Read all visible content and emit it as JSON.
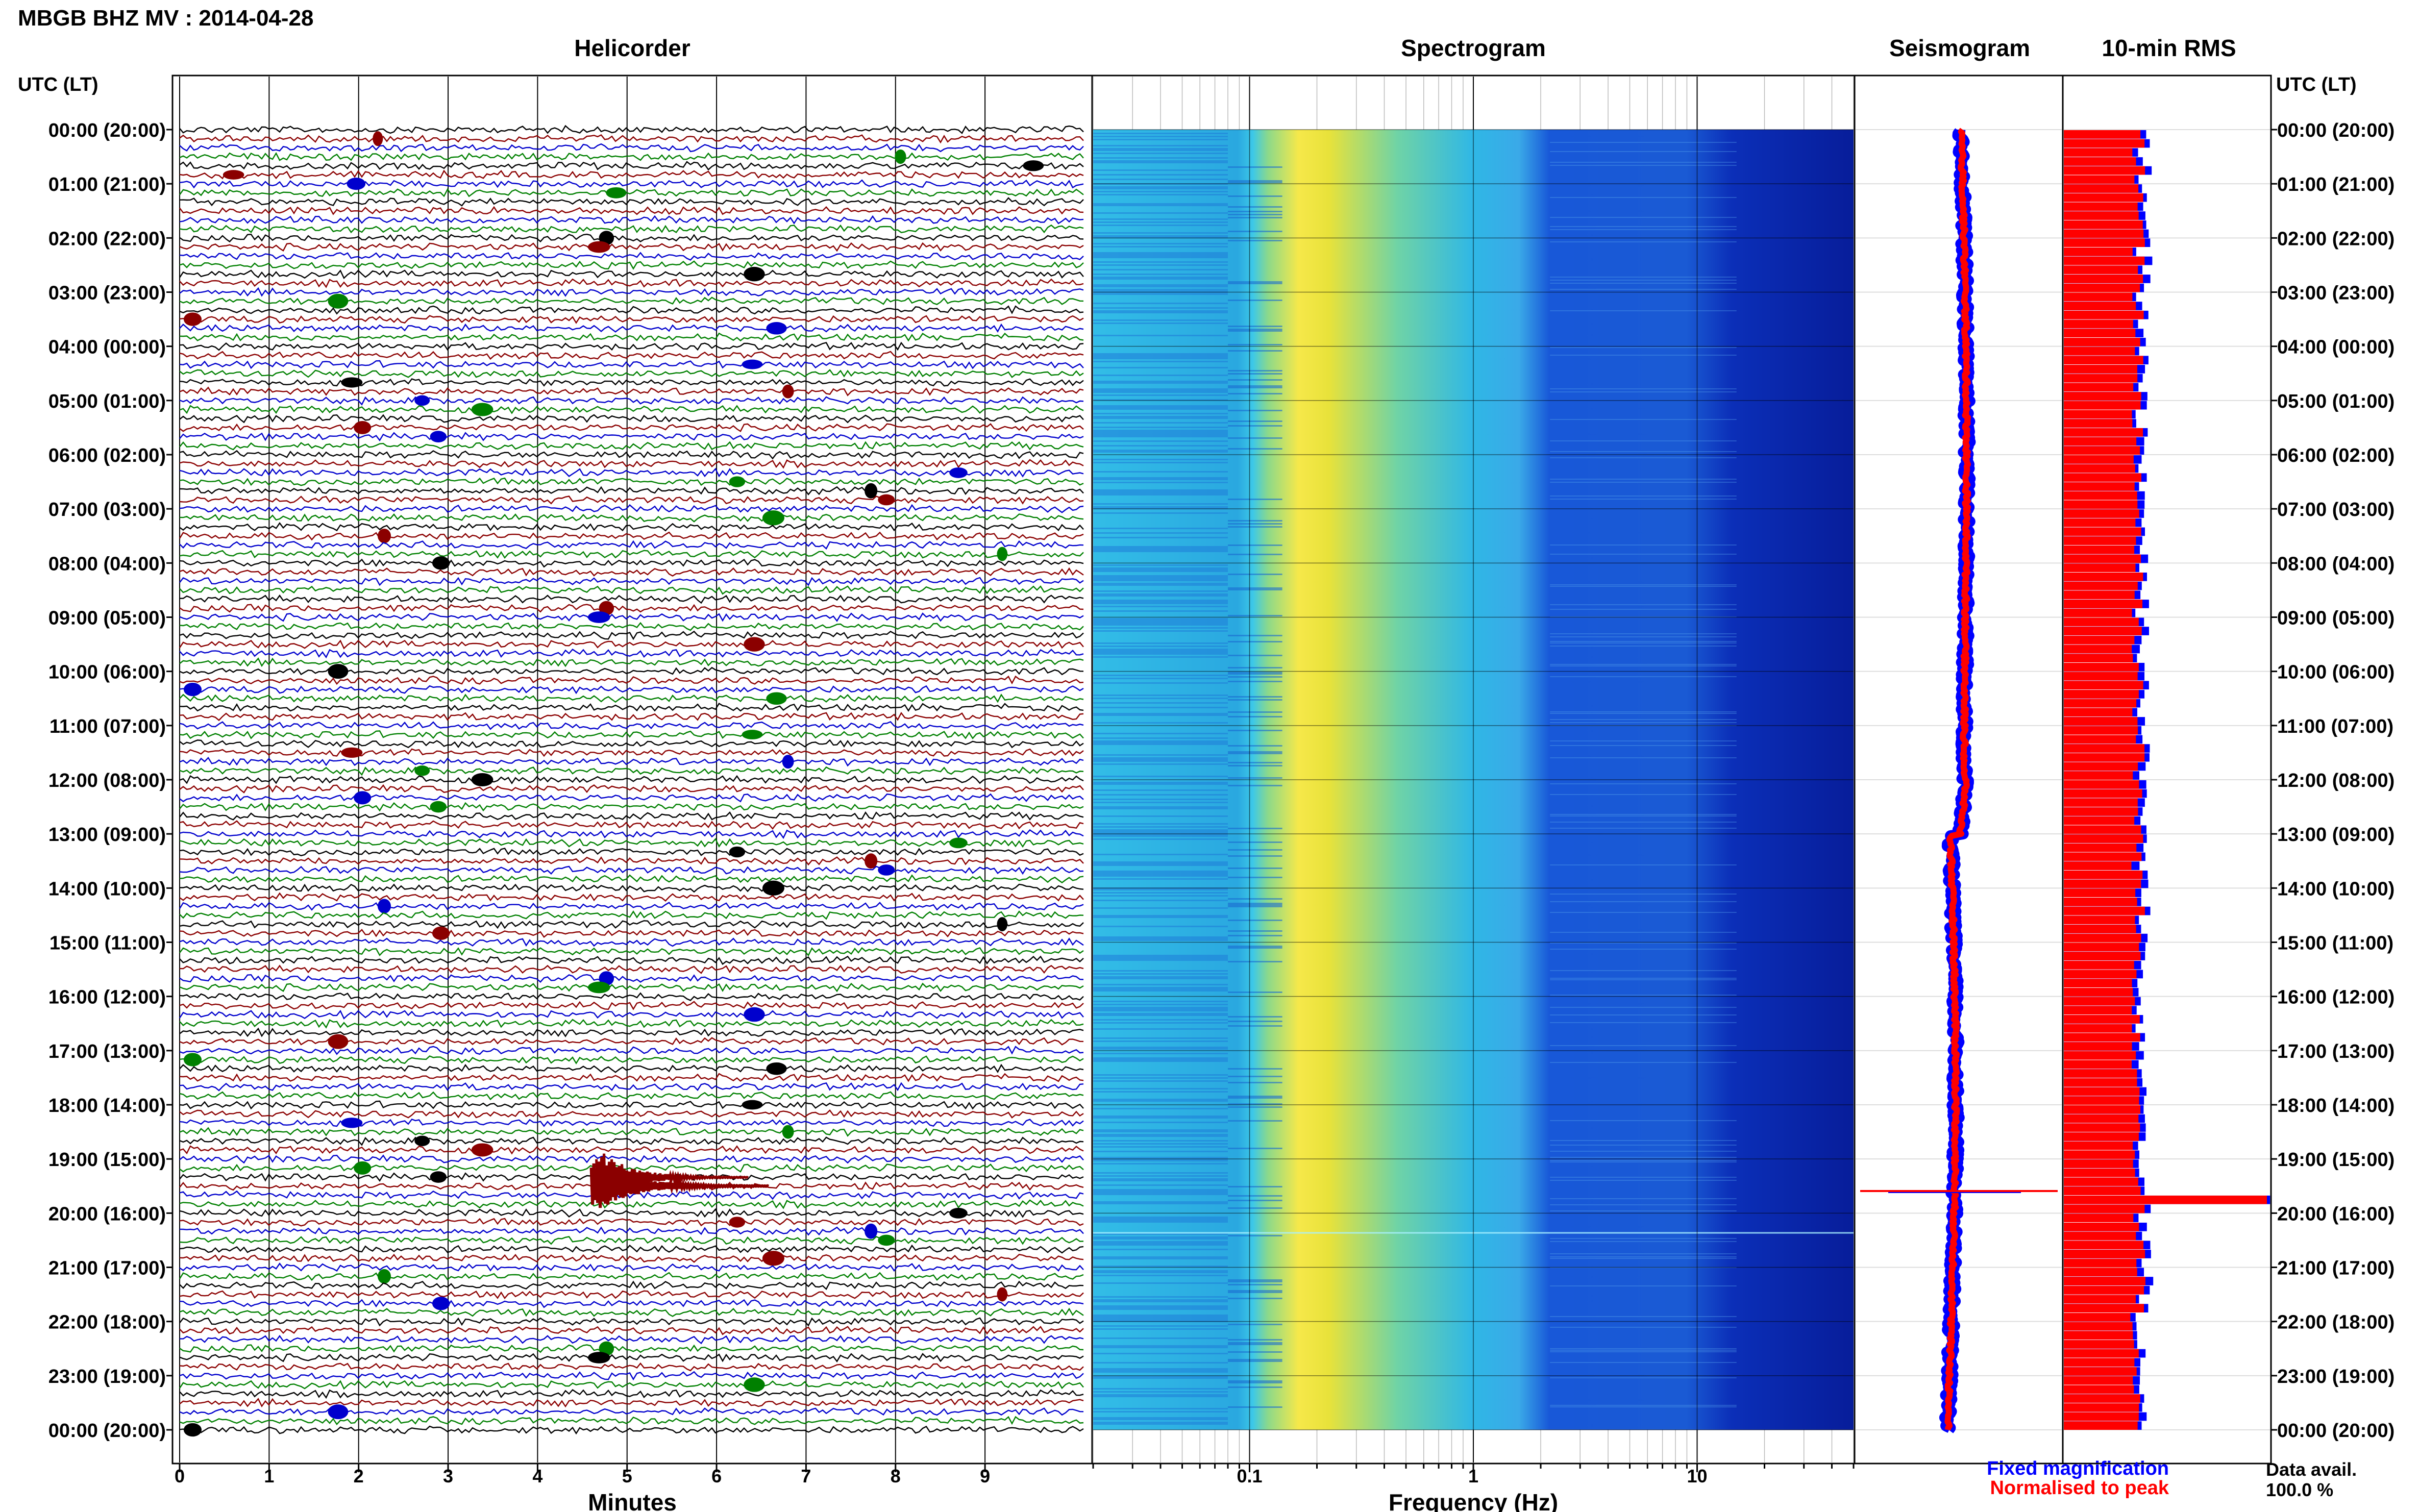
{
  "header": {
    "title": "MBGB BHZ MV : 2014-04-28"
  },
  "panels": {
    "helicorder": {
      "title": "Helicorder",
      "xlabel": "Minutes",
      "ticks": [
        "0",
        "1",
        "2",
        "3",
        "4",
        "5",
        "6",
        "7",
        "8",
        "9"
      ]
    },
    "spectrogram": {
      "title": "Spectrogram",
      "xlabel": "Frequency (Hz)",
      "ticks": [
        "0.1",
        "1",
        "10"
      ]
    },
    "seismogram": {
      "title": "Seismogram"
    },
    "rms": {
      "title": "10-min RMS"
    }
  },
  "time_axis": {
    "header_left": "UTC (LT)",
    "header_right": "UTC (LT)",
    "labels": [
      "00:00 (20:00)",
      "01:00 (21:00)",
      "02:00 (22:00)",
      "03:00 (23:00)",
      "04:00 (00:00)",
      "05:00 (01:00)",
      "06:00 (02:00)",
      "07:00 (03:00)",
      "08:00 (04:00)",
      "09:00 (05:00)",
      "10:00 (06:00)",
      "11:00 (07:00)",
      "12:00 (08:00)",
      "13:00 (09:00)",
      "14:00 (10:00)",
      "15:00 (11:00)",
      "16:00 (12:00)",
      "17:00 (13:00)",
      "18:00 (14:00)",
      "19:00 (15:00)",
      "20:00 (16:00)",
      "21:00 (17:00)",
      "22:00 (18:00)",
      "23:00 (19:00)",
      "00:00 (20:00)"
    ]
  },
  "legend": {
    "fixed": "Fixed magnification",
    "normalised": "Normalised to peak",
    "fixed_color": "#0000ff",
    "normalised_color": "#ff0000"
  },
  "data_avail": {
    "label": "Data avail.",
    "value": "100.0 %"
  },
  "colors": {
    "trace": [
      "#000000",
      "#8b0000",
      "#0000cd",
      "#008000"
    ],
    "rms_fill": "#ff0000",
    "rms_edge": "#0000ff"
  },
  "chart_data": {
    "type": "helicorder",
    "date": "2014-04-28",
    "rows_per_hour": 6,
    "event": {
      "utc": "19:30",
      "minute_start": 4.6
    },
    "rms_spike_utc": "19:40",
    "spectrogram_xlim": [
      0.02,
      50
    ],
    "spectrogram_scale": "log"
  }
}
